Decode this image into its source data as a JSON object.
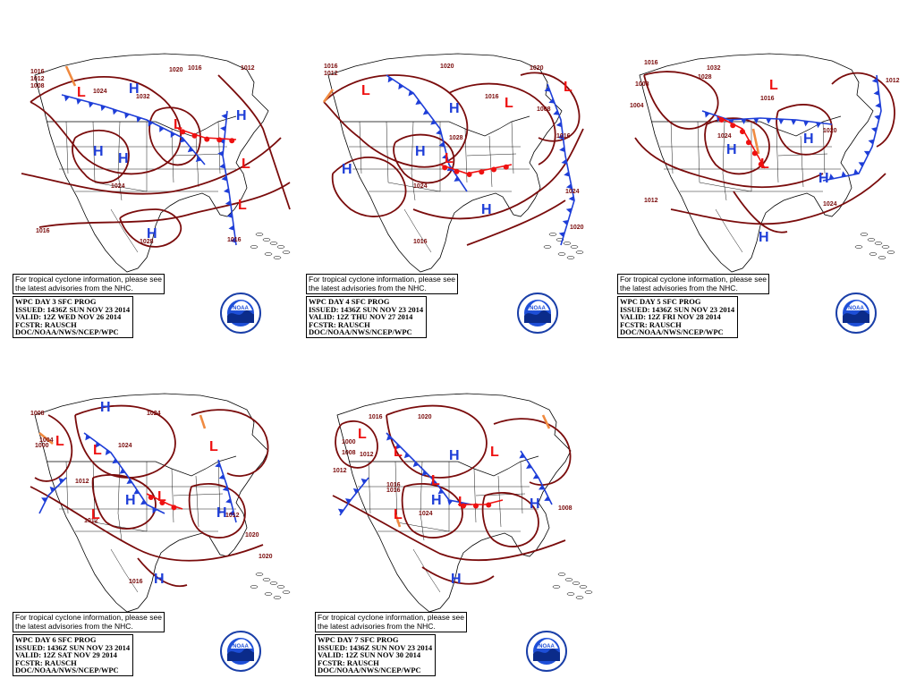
{
  "panels": [
    {
      "id": "day3",
      "note_lines": [
        "For tropical cyclone information, please see",
        "the latest advisories from the NHC."
      ],
      "info_lines": [
        "WPC DAY 3 SFC PROG",
        "ISSUED: 1436Z SUN NOV 23 2014",
        "VALID: 12Z WED NOV 26 2014",
        "FCSTR: RAUSCH",
        "DOC/NOAA/NWS/NCEP/WPC"
      ],
      "isobar_labels": [
        "1016",
        "1012",
        "1008",
        "1032",
        "1012",
        "1016",
        "1020",
        "1024",
        "1016",
        "1028",
        "1016",
        "1024"
      ],
      "logo_text": "NOAA"
    },
    {
      "id": "day4",
      "note_lines": [
        "For tropical cyclone information, please see",
        "the latest advisories from the NHC."
      ],
      "info_lines": [
        "WPC DAY 4 SFC PROG",
        "ISSUED: 1436Z SUN NOV 23 2014",
        "VALID: 12Z THU NOV 27 2014",
        "FCSTR: RAUSCH",
        "DOC/NOAA/NWS/NCEP/WPC"
      ],
      "isobar_labels": [
        "1016",
        "1012",
        "1020",
        "1020",
        "1028",
        "1008",
        "1016",
        "1024",
        "1024",
        "1016",
        "1020",
        "1016"
      ],
      "logo_text": "NOAA"
    },
    {
      "id": "day5",
      "note_lines": [
        "For tropical cyclone information, please see",
        "the latest advisories from the NHC."
      ],
      "info_lines": [
        "WPC DAY 5 SFC PROG",
        "ISSUED: 1436Z SUN NOV 23 2014",
        "VALID: 12Z FRI NOV 28 2014",
        "FCSTR: RAUSCH",
        "DOC/NOAA/NWS/NCEP/WPC"
      ],
      "isobar_labels": [
        "1016",
        "1008",
        "1004",
        "1032",
        "1028",
        "1012",
        "1020",
        "1024",
        "1016",
        "1012",
        "1024"
      ],
      "logo_text": "NOAA"
    },
    {
      "id": "day6",
      "note_lines": [
        "For tropical cyclone information, please see",
        "the latest advisories from the NHC."
      ],
      "info_lines": [
        "WPC DAY 6 SFC PROG",
        "ISSUED: 1436Z SUN NOV 23 2014",
        "VALID: 12Z SAT NOV 29 2014",
        "FCSTR: RAUSCH",
        "DOC/NOAA/NWS/NCEP/WPC"
      ],
      "isobar_labels": [
        "1008",
        "1004",
        "1000",
        "1012",
        "1024",
        "1012",
        "1024",
        "1020",
        "1016",
        "1020",
        "1012"
      ],
      "logo_text": "NOAA"
    },
    {
      "id": "day7",
      "note_lines": [
        "For tropical cyclone information, please see",
        "the latest advisories from the NHC."
      ],
      "info_lines": [
        "WPC DAY 7 SFC PROG",
        "ISSUED: 1436Z SUN NOV 23 2014",
        "VALID: 12Z SUN NOV 30 2014",
        "FCSTR: RAUSCH",
        "DOC/NOAA/NWS/NCEP/WPC"
      ],
      "isobar_labels": [
        "1016",
        "1020",
        "1000",
        "1008",
        "1012",
        "1016",
        "1024",
        "1008",
        "1012",
        "1016"
      ],
      "logo_text": "NOAA"
    }
  ],
  "colors": {
    "isobar": "#7a0c0c",
    "high": "#1e3ed8",
    "low": "#ee1111",
    "cold_front": "#1e3ed8",
    "warm_front": "#ee1111",
    "trough": "#f08a40",
    "occluded": "#9b30d0",
    "map_outline": "#000000"
  }
}
